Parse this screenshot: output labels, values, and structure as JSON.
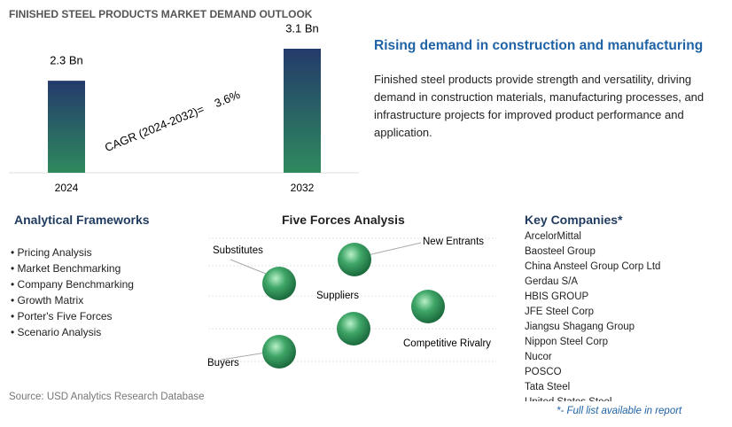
{
  "header": {
    "title": "FINISHED STEEL PRODUCTS MARKET DEMAND OUTLOOK"
  },
  "chart_data": {
    "type": "bar",
    "categories": [
      "2024",
      "2032"
    ],
    "values": [
      2.3,
      3.1
    ],
    "value_labels": [
      "2.3 Bn",
      "3.1 Bn"
    ],
    "annotation": "CAGR (2024-2032)=",
    "annotation_value": "3.6%"
  },
  "highlight": {
    "title": "Rising demand in construction and manufacturing",
    "text": "Finished steel products provide strength and versatility, driving demand in construction materials, manufacturing processes, and infrastructure projects for improved product performance and application."
  },
  "frameworks": {
    "title": "Analytical Frameworks",
    "items": [
      "Pricing Analysis",
      "Market Benchmarking",
      "Company Benchmarking",
      "Growth Matrix",
      "Porter's Five Forces",
      "Scenario Analysis"
    ]
  },
  "five_forces": {
    "title": "Five Forces Analysis",
    "labels": [
      "Substitutes",
      "New Entrants",
      "Suppliers",
      "Competitive Rivalry",
      "Buyers"
    ]
  },
  "companies": {
    "title": "Key Companies*",
    "items": [
      "ArcelorMittal",
      "Baosteel Group",
      "China Ansteel Group Corp Ltd",
      "Gerdau S/A",
      "HBIS GROUP",
      "JFE Steel Corp",
      "Jiangsu Shagang Group",
      "Nippon Steel Corp",
      "Nucor",
      "POSCO",
      "Tata Steel",
      "United States Steel"
    ],
    "note": "*- Full list available in report"
  },
  "source": "Source: USD Analytics Research Database"
}
